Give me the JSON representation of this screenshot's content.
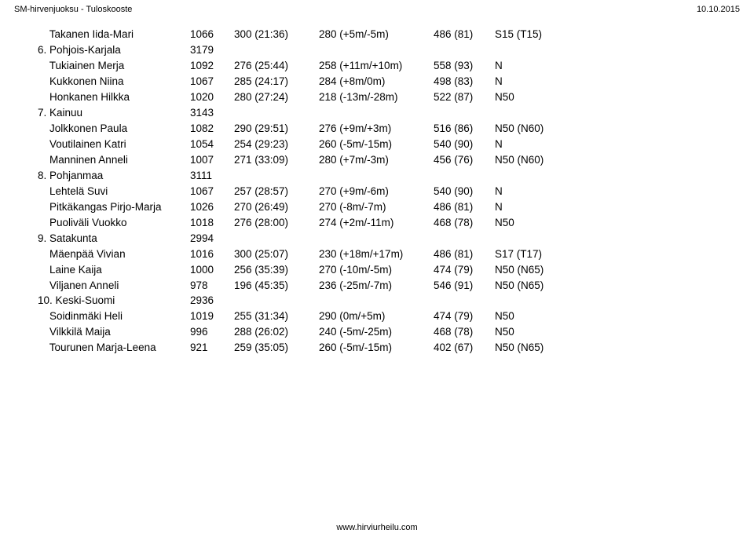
{
  "header": {
    "left": "SM-hirvenjuoksu - Tuloskooste",
    "right": "10.10.2015"
  },
  "footer": "www.hirviurheilu.com",
  "rows": [
    {
      "type": "person",
      "name": "    Takanen Iida-Mari",
      "num": "1066",
      "time": "300 (21:36)",
      "diff": "280 (+5m/-5m)",
      "score": "486 (81)",
      "note": "S15 (T15)"
    },
    {
      "type": "team",
      "name": "6. Pohjois-Karjala",
      "num": "3179"
    },
    {
      "type": "person",
      "name": "    Tukiainen Merja",
      "num": "1092",
      "time": "276 (25:44)",
      "diff": "258 (+11m/+10m)",
      "score": "558 (93)",
      "note": "N"
    },
    {
      "type": "person",
      "name": "    Kukkonen Niina",
      "num": "1067",
      "time": "285 (24:17)",
      "diff": "284 (+8m/0m)",
      "score": "498 (83)",
      "note": "N"
    },
    {
      "type": "person",
      "name": "    Honkanen Hilkka",
      "num": "1020",
      "time": "280 (27:24)",
      "diff": "218 (-13m/-28m)",
      "score": "522 (87)",
      "note": "N50"
    },
    {
      "type": "team",
      "name": "7. Kainuu",
      "num": "3143"
    },
    {
      "type": "person",
      "name": "    Jolkkonen Paula",
      "num": "1082",
      "time": "290 (29:51)",
      "diff": "276 (+9m/+3m)",
      "score": "516 (86)",
      "note": "N50 (N60)"
    },
    {
      "type": "person",
      "name": "    Voutilainen Katri",
      "num": "1054",
      "time": "254 (29:23)",
      "diff": "260 (-5m/-15m)",
      "score": "540 (90)",
      "note": "N"
    },
    {
      "type": "person",
      "name": "    Manninen Anneli",
      "num": "1007",
      "time": "271 (33:09)",
      "diff": "280 (+7m/-3m)",
      "score": "456 (76)",
      "note": "N50 (N60)"
    },
    {
      "type": "team",
      "name": "8. Pohjanmaa",
      "num": "3111"
    },
    {
      "type": "person",
      "name": "    Lehtelä Suvi",
      "num": "1067",
      "time": "257 (28:57)",
      "diff": "270 (+9m/-6m)",
      "score": "540 (90)",
      "note": "N"
    },
    {
      "type": "person",
      "name": "    Pitkäkangas Pirjo-Marja",
      "num": "1026",
      "time": "270 (26:49)",
      "diff": "270 (-8m/-7m)",
      "score": "486 (81)",
      "note": "N"
    },
    {
      "type": "person",
      "name": "    Puoliväli Vuokko",
      "num": "1018",
      "time": "276 (28:00)",
      "diff": "274 (+2m/-11m)",
      "score": "468 (78)",
      "note": "N50"
    },
    {
      "type": "team",
      "name": "9. Satakunta",
      "num": "2994"
    },
    {
      "type": "person",
      "name": "    Mäenpää Vivian",
      "num": "1016",
      "time": "300 (25:07)",
      "diff": "230 (+18m/+17m)",
      "score": "486 (81)",
      "note": "S17 (T17)"
    },
    {
      "type": "person",
      "name": "    Laine Kaija",
      "num": "1000",
      "time": "256 (35:39)",
      "diff": "270 (-10m/-5m)",
      "score": "474 (79)",
      "note": "N50 (N65)"
    },
    {
      "type": "person",
      "name": "    Viljanen Anneli",
      "num": "978",
      "time": "196 (45:35)",
      "diff": "236 (-25m/-7m)",
      "score": "546 (91)",
      "note": "N50 (N65)"
    },
    {
      "type": "team",
      "name": "10. Keski-Suomi",
      "num": "2936"
    },
    {
      "type": "person",
      "name": "    Soidinmäki Heli",
      "num": "1019",
      "time": "255 (31:34)",
      "diff": "290 (0m/+5m)",
      "score": "474 (79)",
      "note": "N50"
    },
    {
      "type": "person",
      "name": "    Vilkkilä Maija",
      "num": "996",
      "time": "288 (26:02)",
      "diff": "240 (-5m/-25m)",
      "score": "468 (78)",
      "note": "N50"
    },
    {
      "type": "person",
      "name": "    Tourunen Marja-Leena",
      "num": "921",
      "time": "259 (35:05)",
      "diff": "260 (-5m/-15m)",
      "score": "402 (67)",
      "note": "N50 (N65)"
    }
  ]
}
